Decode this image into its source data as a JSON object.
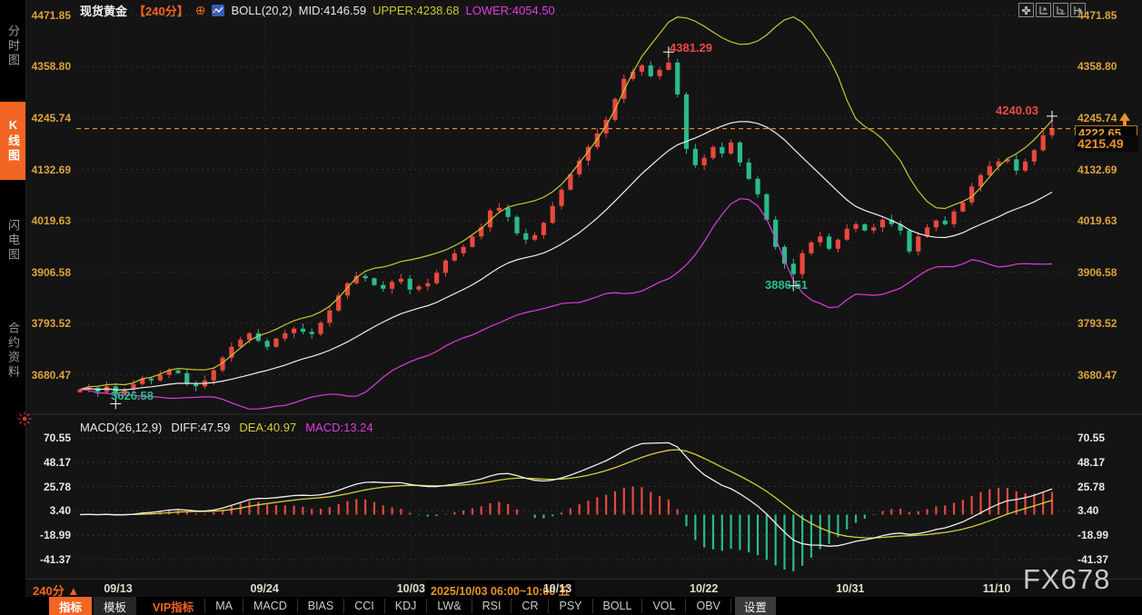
{
  "app": {
    "watermark": "FX678"
  },
  "sidebar": {
    "items": [
      {
        "label": "分时图",
        "active": false
      },
      {
        "label": "K线图",
        "active": true
      },
      {
        "label": "闪电图",
        "active": false
      },
      {
        "label": "合约资料",
        "active": false
      }
    ]
  },
  "header": {
    "symbol": "现货黄金",
    "period": "【240分】",
    "plus": "⊕",
    "boll": "BOLL(20,2)",
    "mid": "MID:4146.59",
    "upper": "UPPER:4238.68",
    "lower": "LOWER:4054.50"
  },
  "top_icons": [
    "crosshair",
    "axis-scale-left",
    "axis-scale-right",
    "pan-right"
  ],
  "annotations": {
    "peak_high": "4381.29",
    "recent_high": "4240.03",
    "mid_low": "3886.51",
    "left_low": "3626.58"
  },
  "price_marker": {
    "line_value": "4222.65",
    "secondary_value": "4215.49"
  },
  "macd_header": {
    "name": "MACD(26,12,9)",
    "diff": "DIFF:47.59",
    "dea": "DEA:40.97",
    "macd": "MACD:13.24"
  },
  "time_axis": {
    "period": "240分",
    "arrow": "▲",
    "tooltip": "2025/10/03 06:00~10:00 五"
  },
  "toolbar": {
    "tab_indicator": "指标",
    "tab_template": "模板",
    "vip": "VIP指标",
    "buttons": [
      "MA",
      "MACD",
      "BIAS",
      "CCI",
      "KDJ",
      "LW&",
      "RSI",
      "CR",
      "PSY",
      "BOLL",
      "VOL",
      "OBV"
    ],
    "settings": "设置"
  },
  "chart_data": {
    "type": "candlestick",
    "title": "现货黄金 240分 K线 BOLL(20,2) + MACD(26,12,9)",
    "price_axis_labels": [
      "4471.85",
      "4358.80",
      "4245.74",
      "4132.69",
      "4019.63",
      "3906.58",
      "3793.52",
      "3680.47"
    ],
    "price_axis_values": [
      4471.85,
      4358.8,
      4245.74,
      4132.69,
      4019.63,
      3906.58,
      3793.52,
      3680.47
    ],
    "macd_axis_labels": [
      "70.55",
      "48.17",
      "25.78",
      "3.40",
      "-18.99",
      "-41.37"
    ],
    "macd_axis_values": [
      70.55,
      48.17,
      25.78,
      3.4,
      -18.99,
      -41.37
    ],
    "x_tick_dates": [
      "09/13",
      "09/24",
      "10/03",
      "10/13",
      "10/22",
      "10/31",
      "11/10"
    ],
    "boll_params": {
      "period": 20,
      "k": 2,
      "mid": 4146.59,
      "upper": 4238.68,
      "lower": 4054.5
    },
    "macd_params": {
      "slow": 26,
      "fast": 12,
      "signal": 9,
      "diff": 47.59,
      "dea": 40.97,
      "macd": 13.24
    },
    "last_price": 4222.65,
    "secondary_price": 4215.49,
    "closes": [
      3648,
      3652,
      3643,
      3655,
      3638,
      3648,
      3660,
      3672,
      3668,
      3680,
      3690,
      3684,
      3662,
      3655,
      3668,
      3690,
      3718,
      3742,
      3758,
      3772,
      3755,
      3742,
      3760,
      3772,
      3782,
      3775,
      3770,
      3795,
      3822,
      3855,
      3882,
      3898,
      3893,
      3878,
      3870,
      3885,
      3892,
      3868,
      3875,
      3882,
      3905,
      3932,
      3948,
      3962,
      3985,
      4005,
      4042,
      4048,
      4028,
      3992,
      3978,
      3988,
      4015,
      4052,
      4088,
      4122,
      4152,
      4182,
      4212,
      4242,
      4288,
      4332,
      4348,
      4362,
      4338,
      4352,
      4368,
      4298,
      4178,
      4142,
      4158,
      4182,
      4168,
      4192,
      4148,
      4112,
      4078,
      4022,
      3962,
      3925,
      3902,
      3948,
      3972,
      3985,
      3958,
      3978,
      4002,
      4012,
      3998,
      4005,
      4022,
      4012,
      3998,
      3952,
      3985,
      4005,
      4020,
      4012,
      4040,
      4060,
      4095,
      4120,
      4140,
      4150,
      4155,
      4130,
      4150,
      4175,
      4208,
      4222.65
    ],
    "extremes": [
      {
        "index": 4,
        "kind": "low",
        "price": 3626.58
      },
      {
        "index": 66,
        "kind": "high",
        "price": 4381.29
      },
      {
        "index": 80,
        "kind": "low",
        "price": 3886.51
      },
      {
        "index": 109,
        "kind": "high",
        "price": 4240.03
      }
    ],
    "colors": {
      "up": "#e8483e",
      "down": "#2abb8c",
      "boll_mid": "#efefef",
      "boll_upper": "#c8c832",
      "boll_lower": "#e03ce0",
      "macd_diff": "#efefef",
      "macd_dea": "#d4cf3a",
      "hist_pos": "#e8483e",
      "hist_neg": "#2abb8c",
      "accent": "#f26522",
      "axis_text": "#dda43c",
      "price_line": "#e8932c",
      "grid": "#3a3a3a"
    },
    "legend_position": "top-left",
    "grid": true
  }
}
